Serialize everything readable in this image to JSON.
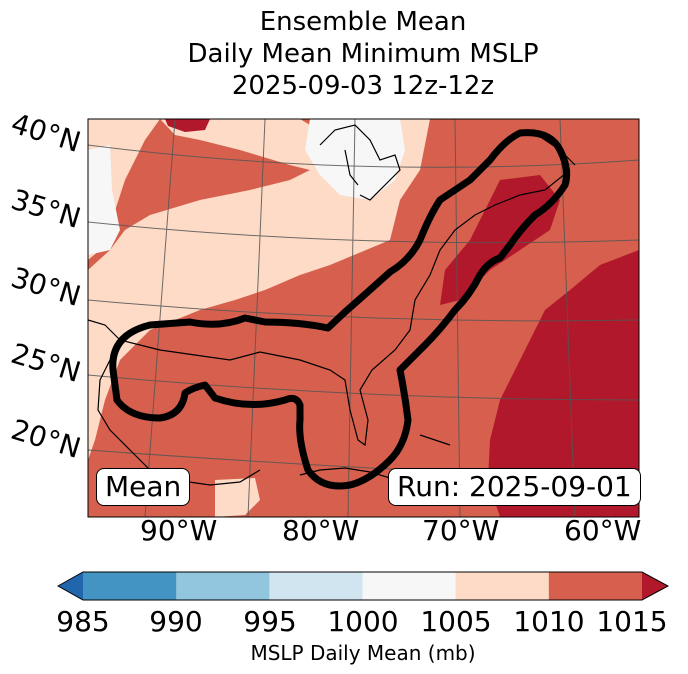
{
  "title": {
    "line1": "Ensemble Mean",
    "line2": "Daily Mean Minimum MSLP",
    "line3": "2025-09-03 12z-12z"
  },
  "map": {
    "lat_labels": [
      "40°N",
      "35°N",
      "30°N",
      "25°N",
      "20°N"
    ],
    "lon_labels": [
      "90°W",
      "80°W",
      "70°W",
      "60°W"
    ],
    "mean_label": "Mean",
    "run_label": "Run: 2025-09-01"
  },
  "colorbar": {
    "label": "MSLP Daily Mean (mb)",
    "ticks": [
      "985",
      "990",
      "995",
      "1000",
      "1005",
      "1010",
      "1015"
    ],
    "colors": [
      "#2166ac",
      "#4393c3",
      "#92c5de",
      "#d1e5f0",
      "#f7f7f7",
      "#fddbc7",
      "#d6604d",
      "#b2182b"
    ]
  }
}
